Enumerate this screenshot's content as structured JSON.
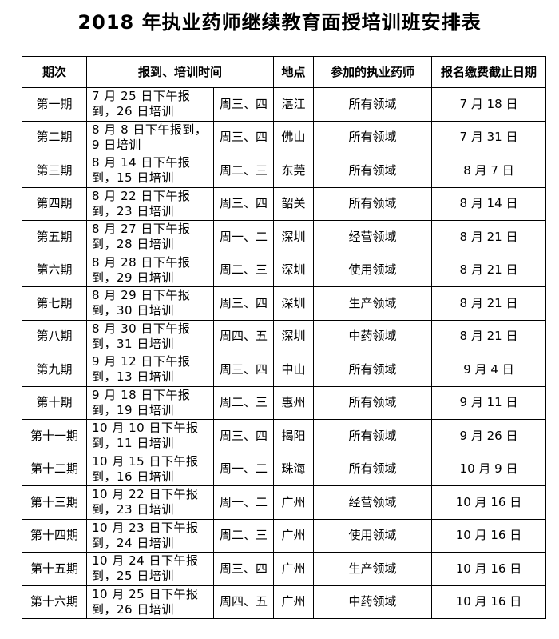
{
  "title": "2018 年执业药师继续教育面授培训班安排表",
  "headers": [
    "期次",
    "报到、培训时间",
    "地点",
    "参加的执业药师",
    "报名缴费截止日期"
  ],
  "rows": [
    {
      "period": "第一期",
      "date": "7 月 25 日下午报到，26 日培训",
      "weekday": "周三、四",
      "location": "湛江",
      "scope": "所有领域",
      "deadline": "7 月 18 日"
    },
    {
      "period": "第二期",
      "date": "8 月 8 日下午报到，9 日培训",
      "weekday": "周三、四",
      "location": "佛山",
      "scope": "所有领域",
      "deadline": "7 月 31 日"
    },
    {
      "period": "第三期",
      "date": "8 月 14 日下午报到，15 日培训",
      "weekday": "周二、三",
      "location": "东莞",
      "scope": "所有领域",
      "deadline": "8 月 7 日"
    },
    {
      "period": "第四期",
      "date": "8 月 22 日下午报到，23 日培训",
      "weekday": "周三、四",
      "location": "韶关",
      "scope": "所有领域",
      "deadline": "8 月 14 日"
    },
    {
      "period": "第五期",
      "date": "8 月 27 日下午报到，28 日培训",
      "weekday": "周一、二",
      "location": "深圳",
      "scope": "经营领域",
      "deadline": "8 月 21 日"
    },
    {
      "period": "第六期",
      "date": "8 月 28 日下午报到，29 日培训",
      "weekday": "周二、三",
      "location": "深圳",
      "scope": "使用领域",
      "deadline": "8 月 21 日"
    },
    {
      "period": "第七期",
      "date": "8 月 29 日下午报到，30 日培训",
      "weekday": "周三、四",
      "location": "深圳",
      "scope": "生产领域",
      "deadline": "8 月 21 日"
    },
    {
      "period": "第八期",
      "date": "8 月 30 日下午报到，31 日培训",
      "weekday": "周四、五",
      "location": "深圳",
      "scope": "中药领域",
      "deadline": "8 月 21 日"
    },
    {
      "period": "第九期",
      "date": "9 月 12 日下午报到，13 日培训",
      "weekday": "周三、四",
      "location": "中山",
      "scope": "所有领域",
      "deadline": "9 月 4 日"
    },
    {
      "period": "第十期",
      "date": "9 月 18 日下午报到，19 日培训",
      "weekday": "周二、三",
      "location": "惠州",
      "scope": "所有领域",
      "deadline": "9 月 11 日"
    },
    {
      "period": "第十一期",
      "date": "10 月 10 日下午报到，11 日培训",
      "weekday": "周三、四",
      "location": "揭阳",
      "scope": "所有领域",
      "deadline": "9 月 26 日"
    },
    {
      "period": "第十二期",
      "date": "10 月 15 日下午报到，16 日培训",
      "weekday": "周一、二",
      "location": "珠海",
      "scope": "所有领域",
      "deadline": "10 月 9 日"
    },
    {
      "period": "第十三期",
      "date": "10 月 22 日下午报到，23 日培训",
      "weekday": "周一、二",
      "location": "广州",
      "scope": "经营领域",
      "deadline": "10 月 16 日"
    },
    {
      "period": "第十四期",
      "date": "10 月 23 日下午报到，24 日培训",
      "weekday": "周二、三",
      "location": "广州",
      "scope": "使用领域",
      "deadline": "10 月 16 日"
    },
    {
      "period": "第十五期",
      "date": "10 月 24 日下午报到，25 日培训",
      "weekday": "周三、四",
      "location": "广州",
      "scope": "生产领域",
      "deadline": "10 月 16 日"
    },
    {
      "period": "第十六期",
      "date": "10 月 25 日下午报到，26 日培训",
      "weekday": "周四、五",
      "location": "广州",
      "scope": "中药领域",
      "deadline": "10 月 16 日"
    }
  ]
}
